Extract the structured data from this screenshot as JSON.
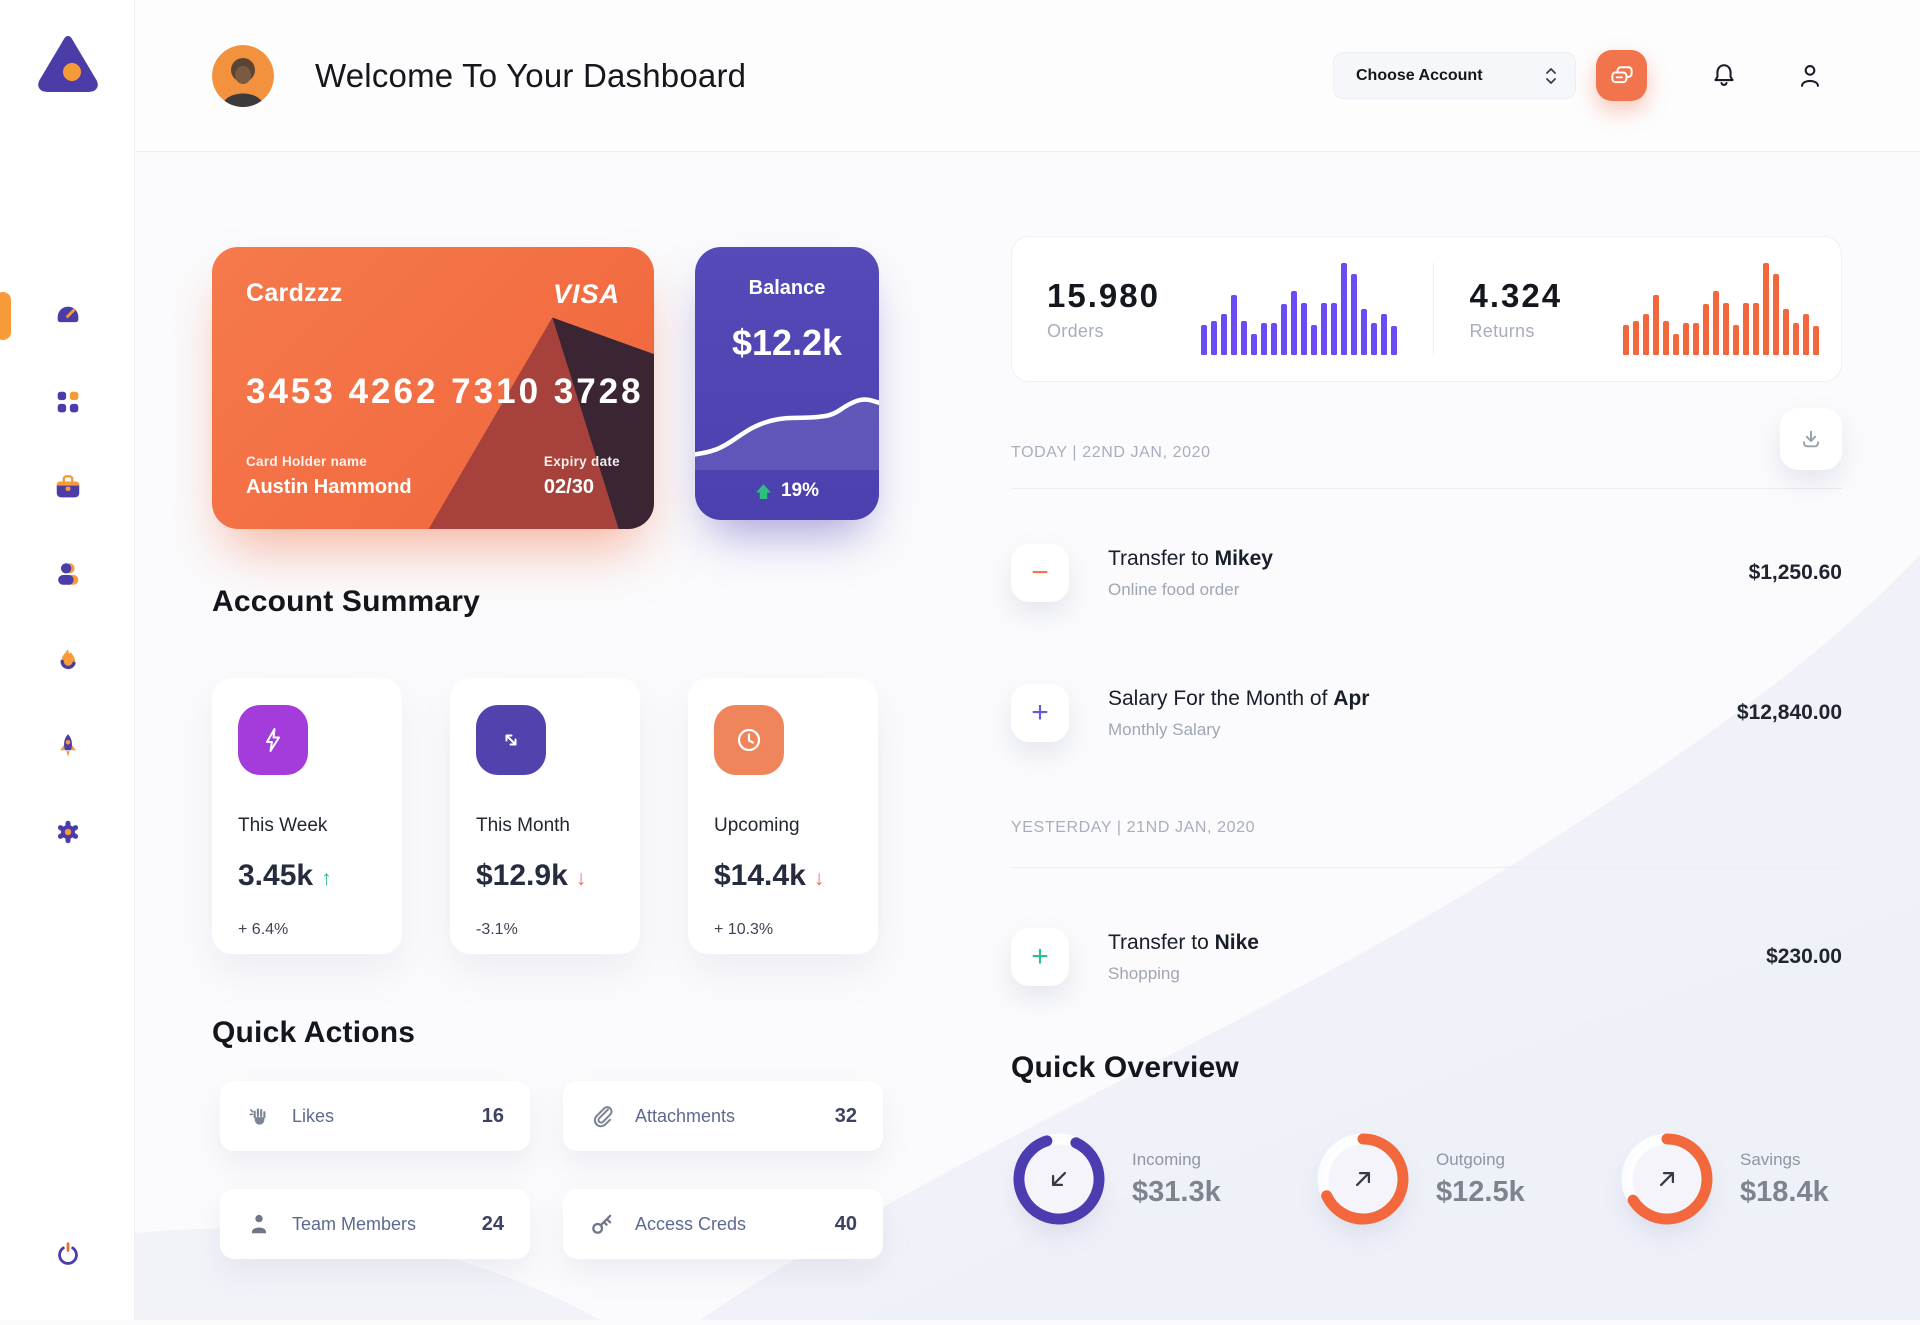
{
  "header": {
    "title": "Welcome To Your Dashboard",
    "account_select_label": "Choose Account",
    "icons": [
      "chat-icon",
      "bell-icon",
      "user-icon"
    ]
  },
  "sidebar": {
    "icons": [
      "dashboard-gauge-icon",
      "apps-grid-icon",
      "briefcase-icon",
      "users-icon",
      "flame-icon",
      "rocket-icon",
      "settings-gear-icon",
      "power-icon"
    ],
    "active_item": "dashboard"
  },
  "credit_card": {
    "name": "Cardzzz",
    "brand": "VISA",
    "number": "3453 4262 7310 3728",
    "holder_label": "Card Holder name",
    "holder_name": "Austin Hammond",
    "expiry_label": "Expiry date",
    "expiry_value": "02/30"
  },
  "balance_card": {
    "title": "Balance",
    "value": "$12.2k",
    "change": "19%",
    "trend": "up"
  },
  "account_summary": {
    "title": "Account Summary",
    "cards": [
      {
        "icon": "lightning-icon",
        "icon_bg": "#A43BDB",
        "label": "This Week",
        "value": "3.45k",
        "arrow": "↑",
        "arrow_color": "#2EBE7E",
        "change": "+ 6.4%"
      },
      {
        "icon": "diagonal-arrows-icon",
        "icon_bg": "#5143AE",
        "label": "This Month",
        "value": "$12.9k",
        "arrow": "↓",
        "arrow_color": "#E8706D",
        "change": "-3.1%"
      },
      {
        "icon": "clock-icon",
        "icon_bg": "#F0855C",
        "label": "Upcoming",
        "value": "$14.4k",
        "arrow": "↓",
        "arrow_color": "#E8706D",
        "change": "+ 10.3%"
      }
    ]
  },
  "quick_actions": {
    "title": "Quick Actions",
    "items": [
      {
        "icon": "clap-icon",
        "label": "Likes",
        "count": "16"
      },
      {
        "icon": "paperclip-icon",
        "label": "Attachments",
        "count": "32"
      },
      {
        "icon": "member-icon",
        "label": "Team Members",
        "count": "24"
      },
      {
        "icon": "key-icon",
        "label": "Access Creds",
        "count": "40"
      }
    ]
  },
  "stats": {
    "orders": {
      "value": "15.980",
      "label": "Orders"
    },
    "returns": {
      "value": "4.324",
      "label": "Returns"
    }
  },
  "chart_data": [
    {
      "type": "bar",
      "name": "orders-volume",
      "color": "#6C4BF4",
      "ylim": [
        0,
        100
      ],
      "unit": "relative-height-%",
      "values": [
        33,
        37,
        45,
        65,
        37,
        23,
        35,
        35,
        55,
        70,
        57,
        33,
        57,
        57,
        100,
        88,
        50,
        35,
        45,
        32
      ]
    },
    {
      "type": "bar",
      "name": "returns-volume",
      "color": "#F2683C",
      "ylim": [
        0,
        100
      ],
      "unit": "relative-height-%",
      "values": [
        33,
        37,
        45,
        65,
        37,
        23,
        35,
        35,
        55,
        70,
        57,
        33,
        57,
        57,
        100,
        88,
        50,
        35,
        45,
        32
      ]
    },
    {
      "type": "line",
      "name": "balance-trend",
      "color": "#FFFFFF",
      "ylim": [
        0,
        100
      ],
      "unit": "relative-height-%",
      "values": [
        10,
        13,
        22,
        36,
        48,
        55,
        58,
        58,
        59,
        62,
        76,
        84,
        78
      ]
    }
  ],
  "transactions": {
    "groups": [
      {
        "date_header": "TODAY | 22ND JAN, 2020",
        "items": [
          {
            "symbol": "−",
            "symbol_color": "#F2744D",
            "title_prefix": "Transfer to ",
            "title_bold": "Mikey",
            "subtitle": "Online food order",
            "amount": "$1,250.60"
          },
          {
            "symbol": "+",
            "symbol_color": "#6459D6",
            "title_prefix": "Salary For the Month of ",
            "title_bold": "Apr",
            "subtitle": "Monthly Salary",
            "amount": "$12,840.00"
          }
        ]
      },
      {
        "date_header": "YESTERDAY | 21ND JAN, 2020",
        "items": [
          {
            "symbol": "+",
            "symbol_color": "#2BC48A",
            "title_prefix": "Transfer to ",
            "title_bold": "Nike",
            "subtitle": "Shopping",
            "amount": "$230.00"
          }
        ]
      }
    ]
  },
  "quick_overview": {
    "title": "Quick Overview",
    "items": [
      {
        "label": "Incoming",
        "value": "$31.3k",
        "percent": 88,
        "color": "#4B3DB0",
        "rotate": -65,
        "arrow": "down-left"
      },
      {
        "label": "Outgoing",
        "value": "$12.5k",
        "percent": 68,
        "color": "#F2683C",
        "rotate": -90,
        "arrow": "up-right"
      },
      {
        "label": "Savings",
        "value": "$18.4k",
        "percent": 66,
        "color": "#F2683C",
        "rotate": -90,
        "arrow": "up-right"
      }
    ]
  },
  "colors": {
    "primary_purple": "#4A3DA8",
    "accent_orange": "#F2683C",
    "sidebar_icon_orange": "#F79A38",
    "positive_green": "#2EBE7E",
    "negative_red": "#E8706D"
  }
}
